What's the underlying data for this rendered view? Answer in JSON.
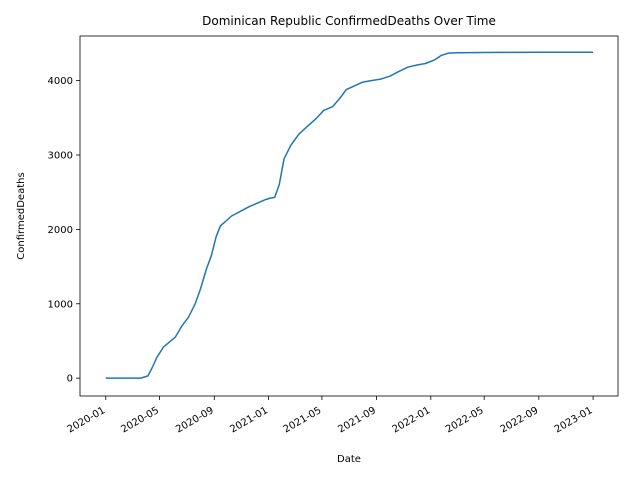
{
  "chart_data": {
    "type": "line",
    "title": "Dominican Republic  ConfirmedDeaths Over Time",
    "xlabel": "Date",
    "ylabel": "ConfirmedDeaths",
    "x_ticks": [
      "2020-01",
      "2020-05",
      "2020-09",
      "2021-01",
      "2021-05",
      "2021-09",
      "2022-01",
      "2022-05",
      "2022-09",
      "2023-01"
    ],
    "y_ticks": [
      "0",
      "1000",
      "2000",
      "3000",
      "4000"
    ],
    "xlim": [
      "2019-11-04",
      "2023-02-26"
    ],
    "ylim": [
      -240,
      4600
    ],
    "grid": false,
    "legend": "none",
    "series_color": "#1f77b4",
    "series": [
      {
        "x": [
          "2020-01-01",
          "2020-03-20",
          "2020-04-05",
          "2020-04-15",
          "2020-04-25",
          "2020-05-10",
          "2020-06-05",
          "2020-06-20",
          "2020-07-05",
          "2020-07-20",
          "2020-08-01",
          "2020-08-15",
          "2020-08-25",
          "2020-09-05",
          "2020-09-15",
          "2020-09-25",
          "2020-10-10",
          "2020-11-01",
          "2020-11-20",
          "2020-12-10",
          "2020-12-25",
          "2021-01-05",
          "2021-01-15",
          "2021-01-25",
          "2021-02-05",
          "2021-02-20",
          "2021-03-10",
          "2021-04-01",
          "2021-04-20",
          "2021-05-05",
          "2021-05-25",
          "2021-06-10",
          "2021-06-25",
          "2021-07-10",
          "2021-08-01",
          "2021-08-20",
          "2021-09-10",
          "2021-10-01",
          "2021-10-20",
          "2021-11-10",
          "2021-12-01",
          "2021-12-20",
          "2022-01-10",
          "2022-01-25",
          "2022-02-10",
          "2022-03-01",
          "2022-05-01",
          "2022-06-01",
          "2022-09-01",
          "2023-01-01"
        ],
        "y": [
          0,
          0,
          30,
          150,
          280,
          420,
          550,
          700,
          820,
          1000,
          1200,
          1480,
          1640,
          1900,
          2050,
          2100,
          2180,
          2250,
          2310,
          2360,
          2400,
          2420,
          2430,
          2600,
          2950,
          3130,
          3280,
          3400,
          3500,
          3600,
          3650,
          3760,
          3880,
          3920,
          3980,
          4000,
          4020,
          4060,
          4120,
          4180,
          4210,
          4230,
          4280,
          4340,
          4370,
          4375,
          4378,
          4380,
          4382,
          4382
        ]
      }
    ]
  }
}
